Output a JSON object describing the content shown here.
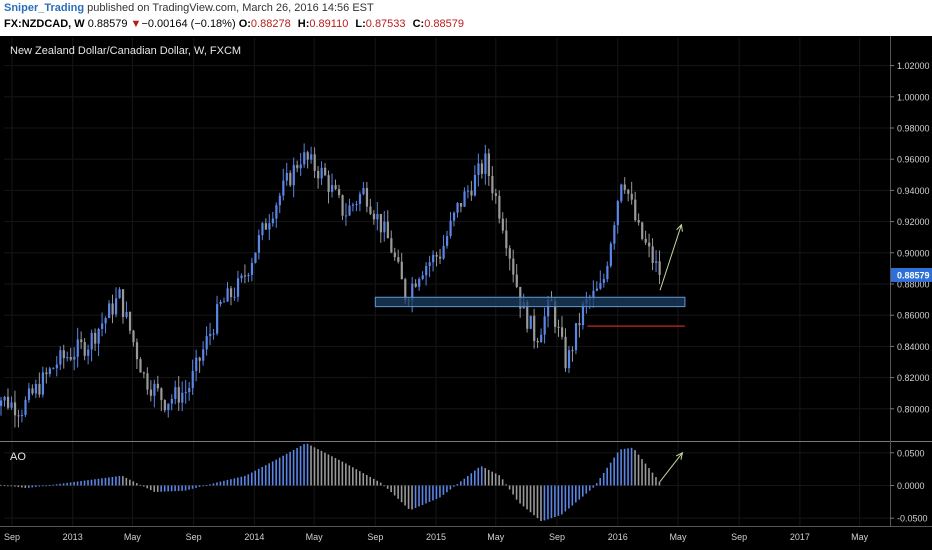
{
  "header": {
    "author": "Sniper_Trading",
    "published": "published on TradingView.com, March 26, 2016 14:56 EST",
    "symbol": "FX:NZDCAD, W",
    "price": "0.88579",
    "change_arrow": "▼",
    "change": "−0.00164 (−0.18%)",
    "open_label": "O:",
    "open": "0.88278",
    "high_label": "H:",
    "high": "0.89110",
    "low_label": "L:",
    "low": "0.87533",
    "close_label": "C:",
    "close": "0.88579"
  },
  "chart_data": [
    {
      "type": "candlestick",
      "title": "New Zealand Dollar/Canadian Dollar, W, FXCM",
      "ylim": [
        0.78,
        1.03
      ],
      "y_ticks": [
        "0.80000",
        "0.82000",
        "0.84000",
        "0.86000",
        "0.88000",
        "0.90000",
        "0.92000",
        "0.94000",
        "0.96000",
        "0.98000",
        "1.00000",
        "1.02000"
      ],
      "last_price_label": "0.88579",
      "x_ticks": [
        "Sep",
        "2013",
        "May",
        "Sep",
        "2014",
        "May",
        "Sep",
        "2015",
        "May",
        "Sep",
        "2016",
        "May",
        "Sep",
        "2017",
        "May"
      ],
      "x_range": [
        "2012-07",
        "2017-06"
      ],
      "close_path": [
        {
          "x": "2012-07-20",
          "y": 0.81
        },
        {
          "x": "2012-09-20",
          "y": 0.8
        },
        {
          "x": "2012-12-01",
          "y": 0.83
        },
        {
          "x": "2013-02-01",
          "y": 0.842
        },
        {
          "x": "2013-04-05",
          "y": 0.872
        },
        {
          "x": "2013-05-25",
          "y": 0.82
        },
        {
          "x": "2013-07-05",
          "y": 0.805
        },
        {
          "x": "2013-08-20",
          "y": 0.812
        },
        {
          "x": "2013-10-25",
          "y": 0.866
        },
        {
          "x": "2013-12-05",
          "y": 0.88
        },
        {
          "x": "2014-02-01",
          "y": 0.925
        },
        {
          "x": "2014-04-05",
          "y": 0.962
        },
        {
          "x": "2014-05-20",
          "y": 0.95
        },
        {
          "x": "2014-07-01",
          "y": 0.925
        },
        {
          "x": "2014-08-10",
          "y": 0.94
        },
        {
          "x": "2014-10-01",
          "y": 0.905
        },
        {
          "x": "2014-11-01",
          "y": 0.872
        },
        {
          "x": "2014-12-01",
          "y": 0.89
        },
        {
          "x": "2015-01-10",
          "y": 0.9
        },
        {
          "x": "2015-02-15",
          "y": 0.93
        },
        {
          "x": "2015-04-10",
          "y": 0.958
        },
        {
          "x": "2015-05-15",
          "y": 0.92
        },
        {
          "x": "2015-06-20",
          "y": 0.868
        },
        {
          "x": "2015-07-20",
          "y": 0.845
        },
        {
          "x": "2015-08-20",
          "y": 0.868
        },
        {
          "x": "2015-09-20",
          "y": 0.828
        },
        {
          "x": "2015-10-25",
          "y": 0.866
        },
        {
          "x": "2015-12-01",
          "y": 0.878
        },
        {
          "x": "2016-01-10",
          "y": 0.952
        },
        {
          "x": "2016-02-10",
          "y": 0.915
        },
        {
          "x": "2016-03-26",
          "y": 0.8858
        }
      ],
      "support_zone": {
        "x_start": "2014-09-01",
        "x_end": "2016-05-15",
        "y_low": 0.8655,
        "y_high": 0.8715
      },
      "red_line": {
        "x_start": "2015-11-01",
        "x_end": "2016-05-15",
        "y": 0.853
      },
      "arrow": {
        "x_start": "2016-03-26",
        "y_start": 0.876,
        "x_end": "2016-05-08",
        "y_end": 0.918
      }
    },
    {
      "type": "bar",
      "title": "AO",
      "ylim": [
        -0.062,
        0.065
      ],
      "y_ticks": [
        "0.0500",
        "0.0000",
        "-0.0500"
      ],
      "x_ticks": [
        "Sep",
        "2013",
        "May",
        "Sep",
        "2014",
        "May",
        "Sep",
        "2015",
        "May",
        "Sep",
        "2016",
        "May",
        "Sep",
        "2017",
        "May"
      ],
      "path": [
        {
          "x": "2012-07-20",
          "y": 0.003
        },
        {
          "x": "2012-10-01",
          "y": -0.004
        },
        {
          "x": "2012-12-01",
          "y": 0.002
        },
        {
          "x": "2013-04-10",
          "y": 0.015
        },
        {
          "x": "2013-06-15",
          "y": -0.01
        },
        {
          "x": "2013-08-15",
          "y": -0.008
        },
        {
          "x": "2013-10-20",
          "y": 0.005
        },
        {
          "x": "2013-12-15",
          "y": 0.015
        },
        {
          "x": "2014-02-15",
          "y": 0.04
        },
        {
          "x": "2014-04-15",
          "y": 0.065
        },
        {
          "x": "2014-07-01",
          "y": 0.035
        },
        {
          "x": "2014-09-15",
          "y": 0.003
        },
        {
          "x": "2014-11-10",
          "y": -0.038
        },
        {
          "x": "2015-01-10",
          "y": -0.018
        },
        {
          "x": "2015-04-01",
          "y": 0.03
        },
        {
          "x": "2015-05-10",
          "y": 0.015
        },
        {
          "x": "2015-06-15",
          "y": -0.025
        },
        {
          "x": "2015-08-01",
          "y": -0.055
        },
        {
          "x": "2015-09-10",
          "y": -0.045
        },
        {
          "x": "2015-11-15",
          "y": -0.002
        },
        {
          "x": "2016-01-05",
          "y": 0.055
        },
        {
          "x": "2016-02-01",
          "y": 0.058
        },
        {
          "x": "2016-03-26",
          "y": 0.005
        }
      ],
      "arrow": {
        "x_start": "2016-03-26",
        "y_start": 0.006,
        "x_end": "2016-05-10",
        "y_end": 0.05
      }
    }
  ],
  "colors": {
    "background": "#000000",
    "up": "#5b86e5",
    "down": "#9a9a9a",
    "grid": "#161616",
    "axis_text": "#d0d0d0",
    "zone_fill": "#1c3d63",
    "zone_stroke": "#5b9bd5",
    "red_line": "#c8281e",
    "arrow": "#c4d8a0",
    "price_tag": "#2f6fd8"
  }
}
